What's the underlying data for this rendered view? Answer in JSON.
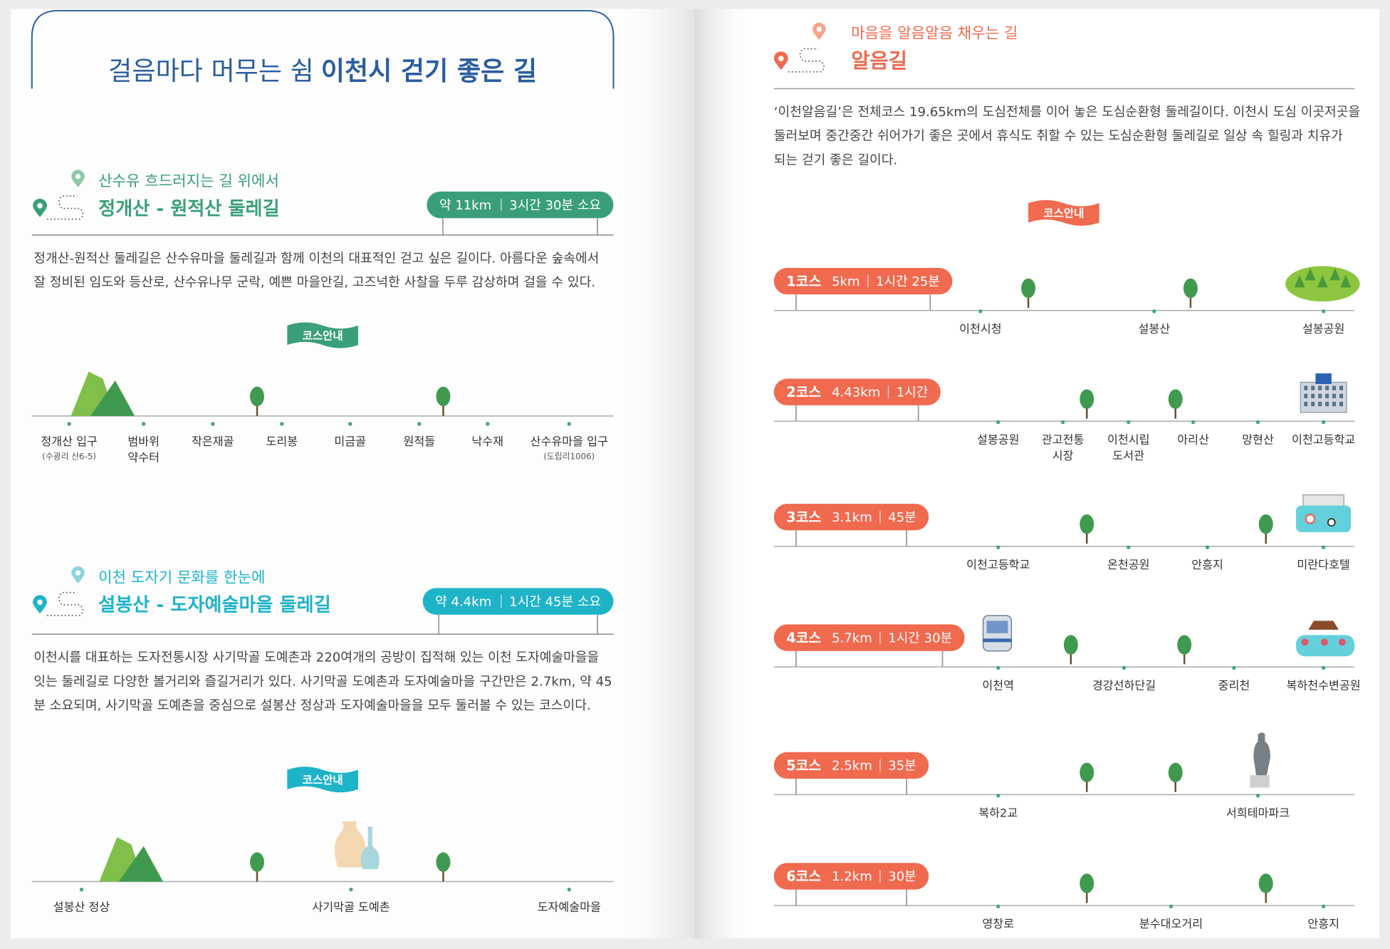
{
  "header": {
    "title_light": "걸음마다 머무는 쉼",
    "title_bold": "이천시 걷기 좋은 길"
  },
  "left": {
    "sections": [
      {
        "subtitle": "산수유 흐드러지는 길 위에서",
        "title": "정개산 - 원적산 둘레길",
        "distance": "약 11km",
        "time": "3시간 30분 소요",
        "description": [
          "정개산-원적산 둘레길은 산수유마을 둘레길과 함께 이천의 대표적인 걷고 싶은 길이다. 아름다운 숲속에서",
          "잘 정비된 임도와 등산로, 산수유나무 군락, 예쁜 마을안길, 고즈넉한 사찰을 두루 감상하며 걸을 수 있다."
        ],
        "badge": "코스안내",
        "stops": [
          {
            "label": [
              "정개산 입구"
            ],
            "note": "(수광리 산6-5)"
          },
          {
            "label": [
              "범바위",
              "약수터"
            ]
          },
          {
            "label": [
              "작은재골"
            ]
          },
          {
            "label": [
              "도리봉"
            ]
          },
          {
            "label": [
              "미금골"
            ]
          },
          {
            "label": [
              "원적들"
            ]
          },
          {
            "label": [
              "낙수재"
            ]
          },
          {
            "label": [
              "산수유마을 입구"
            ],
            "note": "(도립리1006)"
          }
        ]
      },
      {
        "subtitle": "이천 도자기 문화를 한눈에",
        "title": "설봉산 -  도자예술마을 둘레길",
        "distance": "약  4.4km",
        "time": "1시간 45분 소요",
        "description": [
          "이천시를 대표하는 도자전통시장 사기막골 도예촌과 220여개의 공방이 집적해 있는 이천 도자예술마을을",
          "잇는 둘레길로 다양한 볼거리와 즐길거리가 있다. 사기막골 도예촌과 도자예술마을 구간만은 2.7km, 약 45",
          "분 소요되며, 사기막골 도예촌을 중심으로 설봉산 정상과 도자예술마을을 모두 둘러볼 수 있는 코스이다."
        ],
        "badge": "코스안내",
        "stops": [
          {
            "label": [
              "설봉산 정상"
            ]
          },
          {
            "label": [
              "사기막골 도예촌"
            ]
          },
          {
            "label": [
              "도자예술마을"
            ]
          }
        ]
      }
    ]
  },
  "right": {
    "subtitle": "마음을 알음알음 채우는 길",
    "title": "알음길",
    "description": [
      "‘이천알음길’은 전체코스 19.65km의 도심전체를 이어 놓은 도심순환형 둘레길이다. 이천시 도심 이곳저곳을",
      "둘러보며 중간중간 쉬어가기 좋은 곳에서 휴식도 취할 수 있는 도심순환형 둘레길로 일상 속 힐링과 치유가",
      "되는 걷기 좋은 길이다."
    ],
    "badge": "코스안내",
    "courses": [
      {
        "name": "1코스",
        "distance": "5km",
        "time": "1시간 25분",
        "stops": [
          {
            "label": [
              "이천시청"
            ]
          },
          {
            "label": [
              "설봉산"
            ]
          },
          {
            "label": [
              "설봉공원"
            ]
          }
        ]
      },
      {
        "name": "2코스",
        "distance": "4.43km",
        "time": "1시간",
        "stops": [
          {
            "label": [
              "설봉공원"
            ]
          },
          {
            "label": [
              "관고전통",
              "시장"
            ]
          },
          {
            "label": [
              "이천시립",
              "도서관"
            ]
          },
          {
            "label": [
              "아리산"
            ]
          },
          {
            "label": [
              "망현산"
            ]
          },
          {
            "label": [
              "이천고등학교"
            ]
          }
        ]
      },
      {
        "name": "3코스",
        "distance": "3.1km",
        "time": "45분",
        "stops": [
          {
            "label": [
              "이천고등학교"
            ]
          },
          {
            "label": [
              "온천공원"
            ]
          },
          {
            "label": [
              "안흥지"
            ]
          },
          {
            "label": [
              "미란다호텔"
            ]
          }
        ]
      },
      {
        "name": "4코스",
        "distance": "5.7km",
        "time": "1시간 30분",
        "stops": [
          {
            "label": [
              "이천역"
            ]
          },
          {
            "label": [
              "경강선하단길"
            ]
          },
          {
            "label": [
              "중리천"
            ]
          },
          {
            "label": [
              "복하천수변공원"
            ]
          }
        ]
      },
      {
        "name": "5코스",
        "distance": "2.5km",
        "time": "35분",
        "stops": [
          {
            "label": [
              "복하2교"
            ]
          },
          {
            "label": [
              "서희테마파크"
            ]
          }
        ]
      },
      {
        "name": "6코스",
        "distance": "1.2km",
        "time": "30분",
        "stops": [
          {
            "label": [
              "영창로"
            ]
          },
          {
            "label": [
              "분수대오거리"
            ]
          },
          {
            "label": [
              "안흥지"
            ]
          }
        ]
      }
    ]
  }
}
